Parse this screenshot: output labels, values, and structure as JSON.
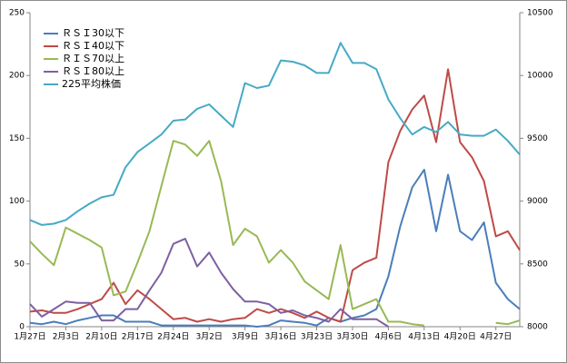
{
  "chart_data": {
    "type": "line",
    "categories": [
      "1月27日",
      null,
      null,
      "2月3日",
      null,
      null,
      "2月10日",
      null,
      null,
      "2月17日",
      null,
      null,
      "2月24日",
      null,
      null,
      "3月2日",
      null,
      null,
      "3月9日",
      null,
      null,
      "3月16日",
      null,
      null,
      "3月23日",
      null,
      null,
      "3月30日",
      null,
      null,
      "4月6日",
      null,
      null,
      "4月13日",
      null,
      null,
      "4月20日",
      null,
      null,
      "4月27日",
      null,
      null
    ],
    "series": [
      {
        "name": "ＲＳＩ30以下",
        "color": "#4a7ebb",
        "values": [
          3,
          2,
          4,
          2,
          5,
          7,
          9,
          9,
          4,
          4,
          4,
          1,
          1,
          1,
          1,
          1,
          1,
          1,
          1,
          0,
          1,
          5,
          4,
          3,
          1,
          7,
          4,
          7,
          9,
          14,
          40,
          80,
          111,
          125,
          76,
          121,
          76,
          69,
          83,
          35,
          22,
          14
        ]
      },
      {
        "name": "ＲＳＩ40以下",
        "color": "#be4b48",
        "values": [
          12,
          13,
          11,
          11,
          14,
          18,
          22,
          35,
          18,
          29,
          22,
          14,
          6,
          7,
          4,
          6,
          4,
          6,
          7,
          14,
          11,
          14,
          11,
          7,
          12,
          7,
          4,
          45,
          51,
          55,
          131,
          156,
          173,
          184,
          147,
          205,
          147,
          135,
          116,
          72,
          76,
          61
        ]
      },
      {
        "name": "ＲＩＳ70以上",
        "color": "#98b954",
        "values": [
          68,
          58,
          49,
          79,
          74,
          69,
          63,
          25,
          28,
          51,
          76,
          112,
          148,
          145,
          136,
          148,
          116,
          65,
          78,
          72,
          51,
          61,
          51,
          36,
          29,
          22,
          65,
          14,
          18,
          22,
          4,
          4,
          2,
          1,
          null,
          null,
          null,
          null,
          null,
          3,
          2,
          5
        ]
      },
      {
        "name": "ＲＳＩ80以上",
        "color": "#7d60a0",
        "values": [
          18,
          8,
          14,
          20,
          19,
          19,
          5,
          5,
          14,
          14,
          29,
          43,
          66,
          70,
          48,
          59,
          43,
          30,
          20,
          20,
          18,
          11,
          13,
          9,
          7,
          4,
          14,
          6,
          6,
          6,
          0,
          null,
          null,
          null,
          null,
          null,
          null,
          null,
          null,
          null,
          null,
          null
        ]
      },
      {
        "name": "225平均株価",
        "color": "#46aac5",
        "axis": "y2",
        "values": [
          8850,
          8810,
          8820,
          8850,
          8920,
          8980,
          9030,
          9050,
          9270,
          9390,
          9460,
          9530,
          9640,
          9650,
          9735,
          9770,
          9680,
          9590,
          9940,
          9900,
          9920,
          10120,
          10110,
          10080,
          10020,
          10020,
          10260,
          10100,
          10100,
          10050,
          9810,
          9660,
          9530,
          9590,
          9550,
          9630,
          9530,
          9520,
          9520,
          9570,
          9480,
          9370
        ]
      }
    ],
    "ylim": [
      0,
      250
    ],
    "yticks": [
      0,
      50,
      100,
      150,
      200,
      250
    ],
    "y2lim": [
      8000,
      10500
    ],
    "y2ticks": [
      8000,
      8500,
      9000,
      9500,
      10000,
      10500
    ],
    "legend": "top-left"
  }
}
